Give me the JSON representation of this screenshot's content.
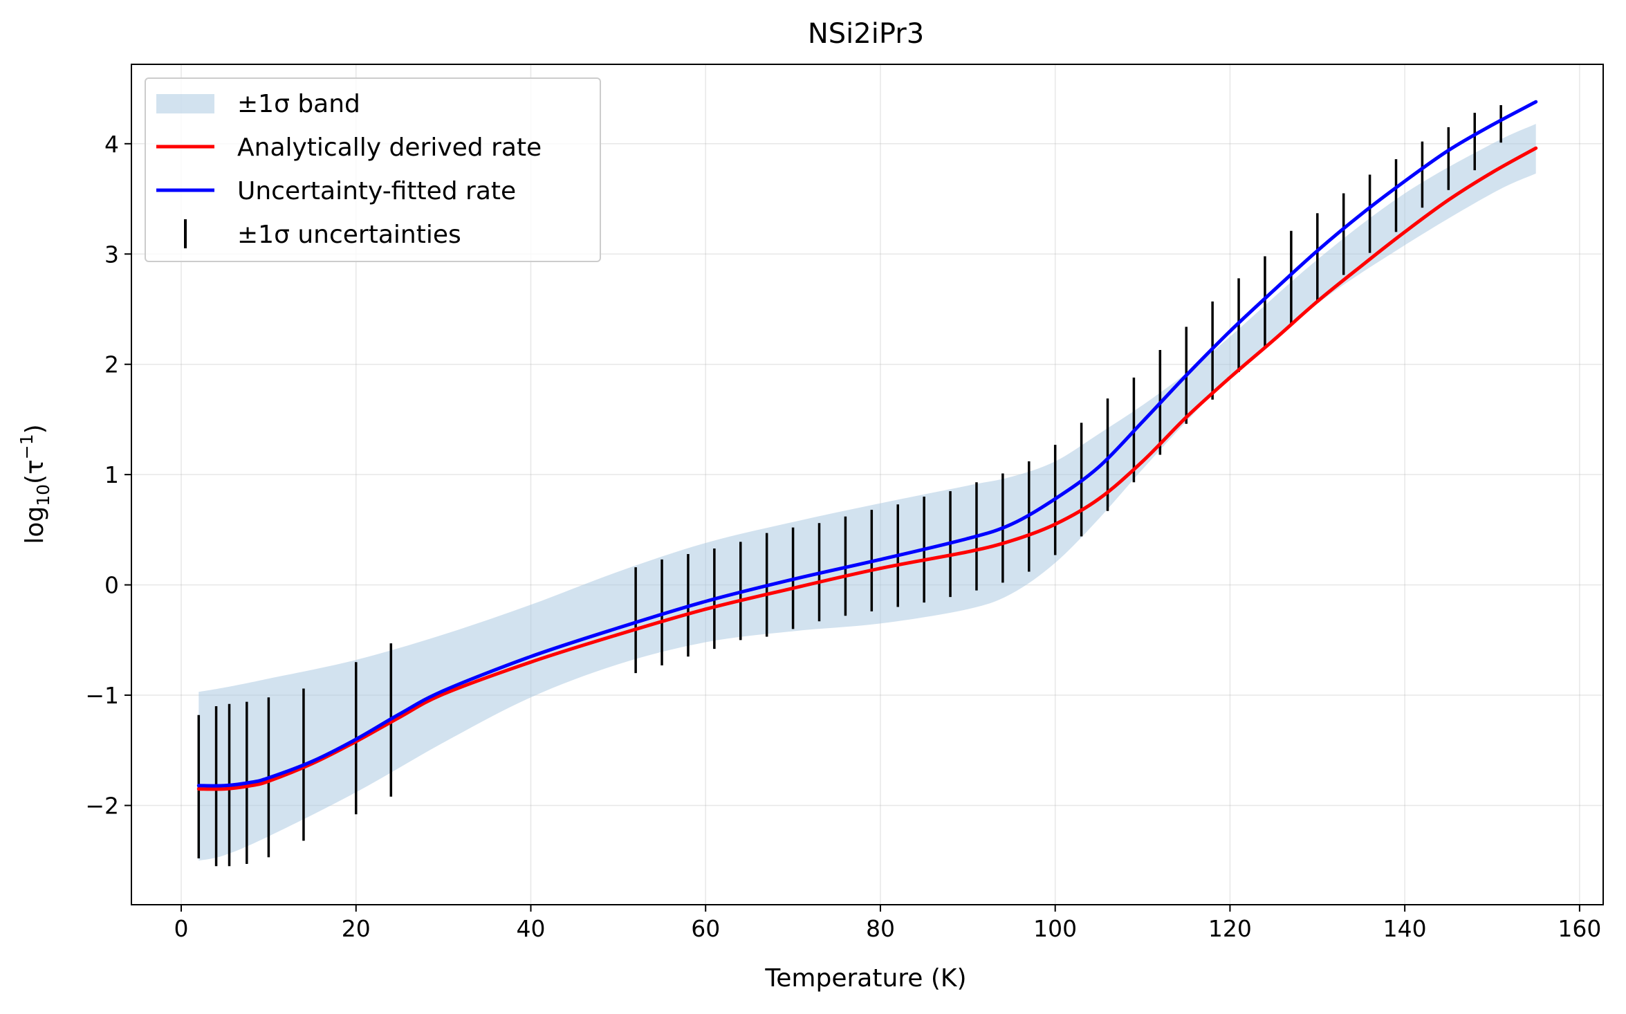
{
  "chart_data": {
    "type": "line",
    "title": "NSi2iPr3",
    "xlabel": "Temperature (K)",
    "ylabel_base": "log",
    "ylabel_sub": "10",
    "ylabel_tail": "(τ",
    "ylabel_sup": "−1",
    "ylabel_close": ")",
    "xlim": [
      -5.7,
      162.7
    ],
    "ylim": [
      -2.9,
      4.72
    ],
    "xticks": [
      0,
      20,
      40,
      60,
      80,
      100,
      120,
      140,
      160
    ],
    "xtick_labels": [
      "0",
      "20",
      "40",
      "60",
      "80",
      "100",
      "120",
      "140",
      "160"
    ],
    "yticks": [
      -2,
      -1,
      0,
      1,
      2,
      3,
      4
    ],
    "ytick_labels": [
      "−2",
      "−1",
      "0",
      "1",
      "2",
      "3",
      "4"
    ],
    "grid": true,
    "legend_position": "top-left",
    "legend": [
      {
        "label": "±1σ band",
        "kind": "band"
      },
      {
        "label": "Analytically derived rate",
        "kind": "line",
        "color": "#ff0000"
      },
      {
        "label": "Uncertainty-fitted rate",
        "kind": "line",
        "color": "#0000ff"
      },
      {
        "label": "±1σ uncertainties",
        "kind": "errorbar",
        "color": "#000000"
      }
    ],
    "band": {
      "name": "±1σ band",
      "color": "#a8c8e0",
      "x": [
        2,
        5,
        10,
        20,
        30,
        40,
        50,
        60,
        70,
        80,
        90,
        95,
        100,
        105,
        110,
        115,
        120,
        130,
        140,
        150,
        155
      ],
      "upper": [
        -0.97,
        -0.93,
        -0.85,
        -0.68,
        -0.45,
        -0.18,
        0.12,
        0.38,
        0.57,
        0.74,
        0.9,
        0.98,
        1.12,
        1.37,
        1.63,
        1.92,
        2.25,
        2.95,
        3.55,
        4.0,
        4.18
      ],
      "lower": [
        -2.5,
        -2.45,
        -2.28,
        -1.88,
        -1.43,
        -1.02,
        -0.72,
        -0.52,
        -0.42,
        -0.35,
        -0.22,
        -0.08,
        0.2,
        0.6,
        1.05,
        1.48,
        1.88,
        2.55,
        3.08,
        3.55,
        3.73
      ]
    },
    "series": [
      {
        "name": "Analytically derived rate",
        "color": "#ff0000",
        "x": [
          2,
          5,
          8,
          10,
          15,
          20,
          25,
          30,
          40,
          50,
          60,
          70,
          80,
          90,
          95,
          100,
          105,
          110,
          115,
          120,
          125,
          130,
          135,
          140,
          145,
          150,
          155
        ],
        "y": [
          -1.85,
          -1.85,
          -1.82,
          -1.78,
          -1.62,
          -1.42,
          -1.2,
          -0.99,
          -0.7,
          -0.45,
          -0.22,
          -0.03,
          0.15,
          0.3,
          0.4,
          0.55,
          0.78,
          1.12,
          1.52,
          1.88,
          2.22,
          2.57,
          2.89,
          3.2,
          3.49,
          3.74,
          3.96
        ]
      },
      {
        "name": "Uncertainty-fitted rate",
        "color": "#0000ff",
        "x": [
          2,
          5,
          8,
          10,
          15,
          20,
          25,
          30,
          40,
          50,
          60,
          70,
          80,
          90,
          95,
          100,
          105,
          110,
          115,
          120,
          125,
          130,
          135,
          140,
          145,
          150,
          155
        ],
        "y": [
          -1.82,
          -1.82,
          -1.79,
          -1.75,
          -1.6,
          -1.4,
          -1.17,
          -0.96,
          -0.65,
          -0.39,
          -0.15,
          0.05,
          0.23,
          0.42,
          0.55,
          0.78,
          1.07,
          1.48,
          1.9,
          2.3,
          2.67,
          3.03,
          3.36,
          3.66,
          3.94,
          4.17,
          4.38
        ]
      }
    ],
    "errorbars": {
      "name": "±1σ uncertainties",
      "color": "#000000",
      "x": [
        2,
        4,
        5.5,
        7.5,
        10,
        14,
        20,
        24,
        52,
        55,
        58,
        61,
        64,
        67,
        70,
        73,
        76,
        79,
        82,
        85,
        88,
        91,
        94,
        97,
        100,
        103,
        106,
        109,
        112,
        115,
        118,
        121,
        124,
        127,
        130,
        133,
        136,
        139,
        142,
        145,
        148,
        151
      ],
      "lower": [
        -2.48,
        -2.55,
        -2.55,
        -2.53,
        -2.47,
        -2.32,
        -2.08,
        -1.92,
        -0.8,
        -0.73,
        -0.65,
        -0.58,
        -0.5,
        -0.47,
        -0.4,
        -0.33,
        -0.28,
        -0.24,
        -0.2,
        -0.16,
        -0.11,
        -0.05,
        0.02,
        0.12,
        0.27,
        0.44,
        0.67,
        0.93,
        1.18,
        1.46,
        1.68,
        1.93,
        2.15,
        2.37,
        2.57,
        2.81,
        3.01,
        3.2,
        3.42,
        3.58,
        3.76,
        4.01
      ],
      "upper": [
        -1.18,
        -1.1,
        -1.08,
        -1.06,
        -1.02,
        -0.94,
        -0.7,
        -0.53,
        0.16,
        0.23,
        0.28,
        0.33,
        0.39,
        0.47,
        0.52,
        0.56,
        0.62,
        0.68,
        0.73,
        0.8,
        0.85,
        0.93,
        1.01,
        1.12,
        1.27,
        1.47,
        1.69,
        1.88,
        2.13,
        2.34,
        2.57,
        2.78,
        2.98,
        3.21,
        3.37,
        3.55,
        3.72,
        3.86,
        4.02,
        4.15,
        4.28,
        4.35
      ]
    }
  }
}
